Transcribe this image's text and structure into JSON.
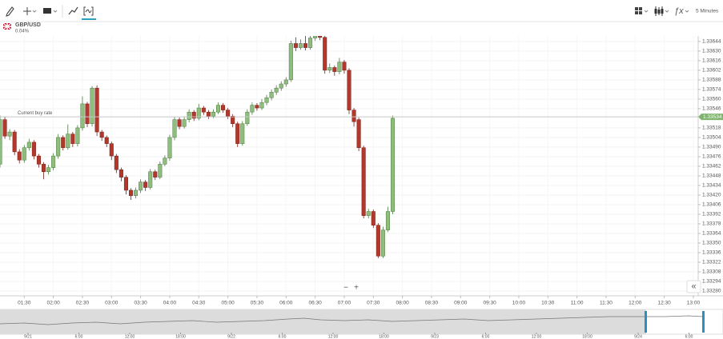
{
  "toolbar": {
    "interval": "5 Minutes"
  },
  "instrument": {
    "symbol": "GBP/USD",
    "change": "0.04%"
  },
  "chart_data": {
    "type": "candlestick",
    "x": [
      "01:05",
      "01:10",
      "01:15",
      "01:20",
      "01:25",
      "01:30",
      "01:35",
      "01:40",
      "01:45",
      "01:50",
      "01:55",
      "02:00",
      "02:05",
      "02:10",
      "02:15",
      "02:20",
      "02:25",
      "02:30",
      "02:35",
      "02:40",
      "02:45",
      "02:50",
      "02:55",
      "03:00",
      "03:05",
      "03:10",
      "03:15",
      "03:20",
      "03:25",
      "03:30",
      "03:35",
      "03:40",
      "03:45",
      "03:50",
      "03:55",
      "04:00",
      "04:05",
      "04:10",
      "04:15",
      "04:20",
      "04:25",
      "04:30",
      "04:35",
      "04:40",
      "04:45",
      "04:50",
      "04:55",
      "05:00",
      "05:05",
      "05:10",
      "05:15",
      "05:20",
      "05:25",
      "05:30",
      "05:35",
      "05:40",
      "05:45",
      "05:50",
      "05:55",
      "06:00",
      "06:05",
      "06:10",
      "06:15",
      "06:20",
      "06:25",
      "06:30",
      "06:35",
      "06:40",
      "06:45",
      "06:50",
      "06:55",
      "07:00",
      "07:05",
      "07:10",
      "07:15",
      "07:20",
      "07:25",
      "07:30",
      "07:35",
      "07:40",
      "07:45",
      "07:50"
    ],
    "open": [
      1.33465,
      1.3353,
      1.33506,
      1.33512,
      1.33483,
      1.33471,
      1.33489,
      1.33497,
      1.33477,
      1.33465,
      1.33454,
      1.3346,
      1.33477,
      1.33504,
      1.33489,
      1.33509,
      1.33495,
      1.33518,
      1.33553,
      1.33524,
      1.33576,
      1.33512,
      1.33504,
      1.33495,
      1.33477,
      1.33457,
      1.33446,
      1.33427,
      1.33419,
      1.33427,
      1.33439,
      1.33431,
      1.33454,
      1.33446,
      1.33465,
      1.33474,
      1.33504,
      1.3353,
      1.3352,
      1.3353,
      1.33541,
      1.33532,
      1.33547,
      1.33541,
      1.33535,
      1.33541,
      1.33551,
      1.33544,
      1.33535,
      1.33524,
      1.33495,
      1.33524,
      1.33541,
      1.33551,
      1.33547,
      1.33555,
      1.33562,
      1.3357,
      1.33576,
      1.33582,
      1.33588,
      1.33641,
      1.33635,
      1.33641,
      1.33635,
      1.33649,
      1.33652,
      1.3365,
      1.33602,
      1.33606,
      1.336,
      1.33614,
      1.33602,
      1.33544,
      1.3353,
      1.33489,
      1.3339,
      1.33396,
      1.33376,
      1.33331,
      1.33369,
      1.33396
    ],
    "high": [
      1.33536,
      1.33534,
      1.33516,
      1.33515,
      1.33487,
      1.33493,
      1.33502,
      1.335,
      1.3348,
      1.33468,
      1.33464,
      1.33481,
      1.33509,
      1.33507,
      1.33523,
      1.33512,
      1.33522,
      1.33564,
      1.33556,
      1.33579,
      1.3358,
      1.33515,
      1.33507,
      1.33498,
      1.3348,
      1.3346,
      1.33449,
      1.3343,
      1.33431,
      1.33443,
      1.33442,
      1.33458,
      1.33457,
      1.33469,
      1.33478,
      1.33508,
      1.33534,
      1.33533,
      1.33535,
      1.33545,
      1.33544,
      1.33553,
      1.3355,
      1.33544,
      1.33545,
      1.33555,
      1.33554,
      1.33547,
      1.33538,
      1.33527,
      1.33528,
      1.33545,
      1.33555,
      1.33554,
      1.3356,
      1.33566,
      1.33574,
      1.3358,
      1.33586,
      1.33592,
      1.33645,
      1.3365,
      1.33647,
      1.33652,
      1.33652,
      1.33654,
      1.33654,
      1.33653,
      1.33612,
      1.33609,
      1.3362,
      1.33617,
      1.33605,
      1.33547,
      1.33533,
      1.33492,
      1.334,
      1.33399,
      1.33379,
      1.33374,
      1.33403,
      1.33536
    ],
    "low": [
      1.3346,
      1.33502,
      1.335,
      1.33478,
      1.33466,
      1.33467,
      1.33485,
      1.33472,
      1.3346,
      1.33443,
      1.3345,
      1.33456,
      1.33473,
      1.33485,
      1.33486,
      1.3349,
      1.33491,
      1.33514,
      1.33519,
      1.3352,
      1.33506,
      1.33499,
      1.3349,
      1.33471,
      1.33452,
      1.3344,
      1.33421,
      1.33413,
      1.33415,
      1.33423,
      1.33426,
      1.33428,
      1.33442,
      1.33443,
      1.33462,
      1.3347,
      1.335,
      1.33516,
      1.33517,
      1.33526,
      1.33528,
      1.33529,
      1.33537,
      1.33531,
      1.33532,
      1.33538,
      1.3354,
      1.33531,
      1.33519,
      1.3349,
      1.33492,
      1.33521,
      1.33537,
      1.33543,
      1.33544,
      1.33551,
      1.33558,
      1.33566,
      1.33572,
      1.33578,
      1.33585,
      1.3363,
      1.33632,
      1.33631,
      1.33632,
      1.33645,
      1.33646,
      1.33597,
      1.33598,
      1.33594,
      1.33596,
      1.33597,
      1.33538,
      1.3352,
      1.33484,
      1.33386,
      1.33386,
      1.33372,
      1.33328,
      1.33328,
      1.33366,
      1.33392
    ],
    "close": [
      1.3353,
      1.33506,
      1.33512,
      1.33483,
      1.33471,
      1.33489,
      1.33497,
      1.33477,
      1.33465,
      1.33454,
      1.3346,
      1.33477,
      1.33504,
      1.33489,
      1.33509,
      1.33495,
      1.33518,
      1.33553,
      1.33524,
      1.33576,
      1.33512,
      1.33504,
      1.33495,
      1.33477,
      1.33457,
      1.33446,
      1.33427,
      1.33419,
      1.33427,
      1.33439,
      1.33431,
      1.33454,
      1.33446,
      1.33465,
      1.33474,
      1.33504,
      1.3353,
      1.3352,
      1.3353,
      1.33541,
      1.33532,
      1.33547,
      1.33541,
      1.33535,
      1.33541,
      1.33551,
      1.33544,
      1.33535,
      1.33524,
      1.33495,
      1.33524,
      1.33541,
      1.33551,
      1.33547,
      1.33555,
      1.33562,
      1.3357,
      1.33576,
      1.33582,
      1.33588,
      1.33641,
      1.33635,
      1.33641,
      1.33635,
      1.33649,
      1.33652,
      1.3365,
      1.33602,
      1.33606,
      1.336,
      1.33614,
      1.33602,
      1.33544,
      1.33527,
      1.33489,
      1.3339,
      1.33396,
      1.33376,
      1.33331,
      1.33369,
      1.33396,
      1.33532
    ],
    "colors": {
      "up": "#8fbd7e",
      "up_edge": "#4d7a43",
      "down": "#b3382b",
      "down_edge": "#76201a"
    },
    "xlim": [
      "01:05",
      "13:05"
    ],
    "xticks": [
      "01:30",
      "02:00",
      "02:30",
      "03:00",
      "03:30",
      "04:00",
      "04:30",
      "05:00",
      "05:30",
      "06:00",
      "06:30",
      "07:00",
      "07:30",
      "08:00",
      "08:30",
      "09:00",
      "09:30",
      "10:00",
      "10:30",
      "11:00",
      "11:30",
      "12:00",
      "12:30",
      "13:00"
    ],
    "ylim": [
      1.33273,
      1.33652
    ],
    "yticks": [
      {
        "value": 1.3328,
        "label": "1.33280"
      },
      1.33294,
      1.33308,
      1.33322,
      1.33336,
      {
        "value": 1.3335,
        "label": "1.33350"
      },
      1.33364,
      1.33378,
      1.33392,
      1.33406,
      {
        "value": 1.3342,
        "label": "1.33420"
      },
      1.33434,
      1.33448,
      1.33462,
      1.33476,
      {
        "value": 1.3349,
        "label": "1.33490"
      },
      1.33504,
      1.33518,
      1.33546,
      {
        "value": 1.3356,
        "label": "1.33560"
      },
      1.33574,
      1.33588,
      1.33602,
      1.33616,
      {
        "value": 1.3363,
        "label": "1.33630"
      },
      1.33644
    ],
    "grid": true,
    "current_price": {
      "label": "Current buy rate",
      "value": 1.33534,
      "color": "#7fb36e"
    }
  },
  "navigator": {
    "labels": [
      "9/21",
      "6:00",
      "12:00",
      "18:00",
      "9/22",
      "6:00",
      "12:00",
      "18:00",
      "9/23",
      "6:00",
      "12:00",
      "18:00",
      "9/24",
      "6:00"
    ]
  },
  "controls": {
    "zoom_out": "−",
    "zoom_in": "+",
    "collapse": "«"
  }
}
